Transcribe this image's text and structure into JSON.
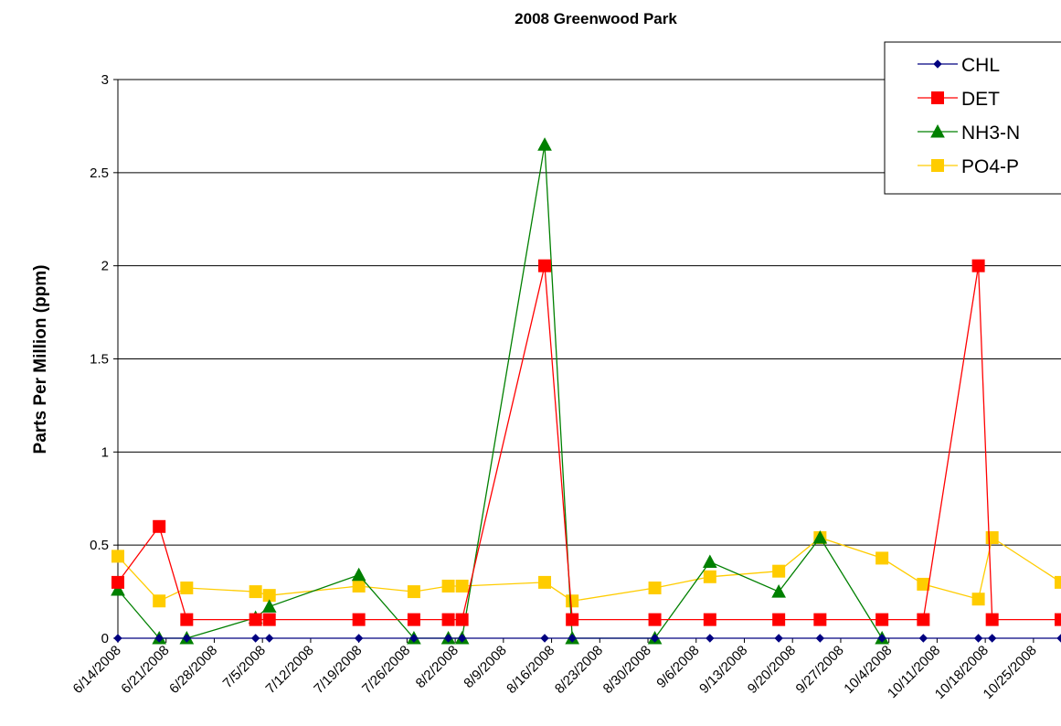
{
  "chart_data": {
    "type": "line",
    "title": "2008 Greenwood Park",
    "xlabel": "",
    "ylabel": "Parts Per Million (ppm)",
    "ylim": [
      0,
      3
    ],
    "y_ticks": [
      "0",
      "0.5",
      "1",
      "1.5",
      "2",
      "2.5",
      "3"
    ],
    "x_tick_labels": [
      "6/14/2008",
      "6/21/2008",
      "6/28/2008",
      "7/5/2008",
      "7/12/2008",
      "7/19/2008",
      "7/26/2008",
      "8/2/2008",
      "8/9/2008",
      "8/16/2008",
      "8/23/2008",
      "8/30/2008",
      "9/6/2008",
      "9/13/2008",
      "9/20/2008",
      "9/27/2008",
      "10/4/2008",
      "10/11/2008",
      "10/18/2008",
      "10/25/2008"
    ],
    "xlim": [
      "2008-06-14",
      "2008-10-29"
    ],
    "grid": "horizontal",
    "legend_position": "top-right",
    "series": [
      {
        "name": "CHL",
        "color": "#000080",
        "marker": "diamond",
        "x": [
          "2008-06-14",
          "2008-06-20",
          "2008-06-24",
          "2008-07-04",
          "2008-07-06",
          "2008-07-19",
          "2008-07-27",
          "2008-08-01",
          "2008-08-03",
          "2008-08-15",
          "2008-08-19",
          "2008-08-31",
          "2008-09-08",
          "2008-09-18",
          "2008-09-24",
          "2008-10-03",
          "2008-10-09",
          "2008-10-17",
          "2008-10-19",
          "2008-10-29"
        ],
        "values": [
          0,
          0,
          0,
          0,
          0,
          0,
          0,
          0,
          0,
          0,
          0,
          0,
          0,
          0,
          0,
          0,
          0,
          0,
          0,
          0
        ]
      },
      {
        "name": "DET",
        "color": "#ff0000",
        "marker": "square",
        "x": [
          "2008-06-14",
          "2008-06-20",
          "2008-06-24",
          "2008-07-04",
          "2008-07-06",
          "2008-07-19",
          "2008-07-27",
          "2008-08-01",
          "2008-08-03",
          "2008-08-15",
          "2008-08-19",
          "2008-08-31",
          "2008-09-08",
          "2008-09-18",
          "2008-09-24",
          "2008-10-03",
          "2008-10-09",
          "2008-10-17",
          "2008-10-19",
          "2008-10-29"
        ],
        "values": [
          0.3,
          0.6,
          0.1,
          0.1,
          0.1,
          0.1,
          0.1,
          0.1,
          0.1,
          2.0,
          0.1,
          0.1,
          0.1,
          0.1,
          0.1,
          0.1,
          0.1,
          2.0,
          0.1,
          0.1
        ]
      },
      {
        "name": "NH3-N",
        "color": "#008000",
        "marker": "triangle",
        "x": [
          "2008-06-14",
          "2008-06-20",
          "2008-06-24",
          "2008-07-04",
          "2008-07-06",
          "2008-07-19",
          "2008-07-27",
          "2008-08-01",
          "2008-08-03",
          "2008-08-15",
          "2008-08-19",
          "2008-08-31",
          "2008-09-08",
          "2008-09-18",
          "2008-09-24",
          "2008-10-03"
        ],
        "values": [
          0.26,
          0,
          0,
          0.11,
          0.17,
          0.34,
          0,
          0,
          0,
          2.65,
          0,
          0,
          0.41,
          0.25,
          0.54,
          0
        ]
      },
      {
        "name": "PO4-P",
        "color": "#ffcc00",
        "marker": "square",
        "x": [
          "2008-06-14",
          "2008-06-20",
          "2008-06-24",
          "2008-07-04",
          "2008-07-06",
          "2008-07-19",
          "2008-07-27",
          "2008-08-01",
          "2008-08-03",
          "2008-08-15",
          "2008-08-19",
          "2008-08-31",
          "2008-09-08",
          "2008-09-18",
          "2008-09-24",
          "2008-10-03",
          "2008-10-09",
          "2008-10-17",
          "2008-10-19",
          "2008-10-29"
        ],
        "values": [
          0.44,
          0.2,
          0.27,
          0.25,
          0.23,
          0.28,
          0.25,
          0.28,
          0.28,
          0.3,
          0.2,
          0.27,
          0.33,
          0.36,
          0.54,
          0.43,
          0.29,
          0.21,
          0.54,
          0.3
        ]
      }
    ]
  }
}
